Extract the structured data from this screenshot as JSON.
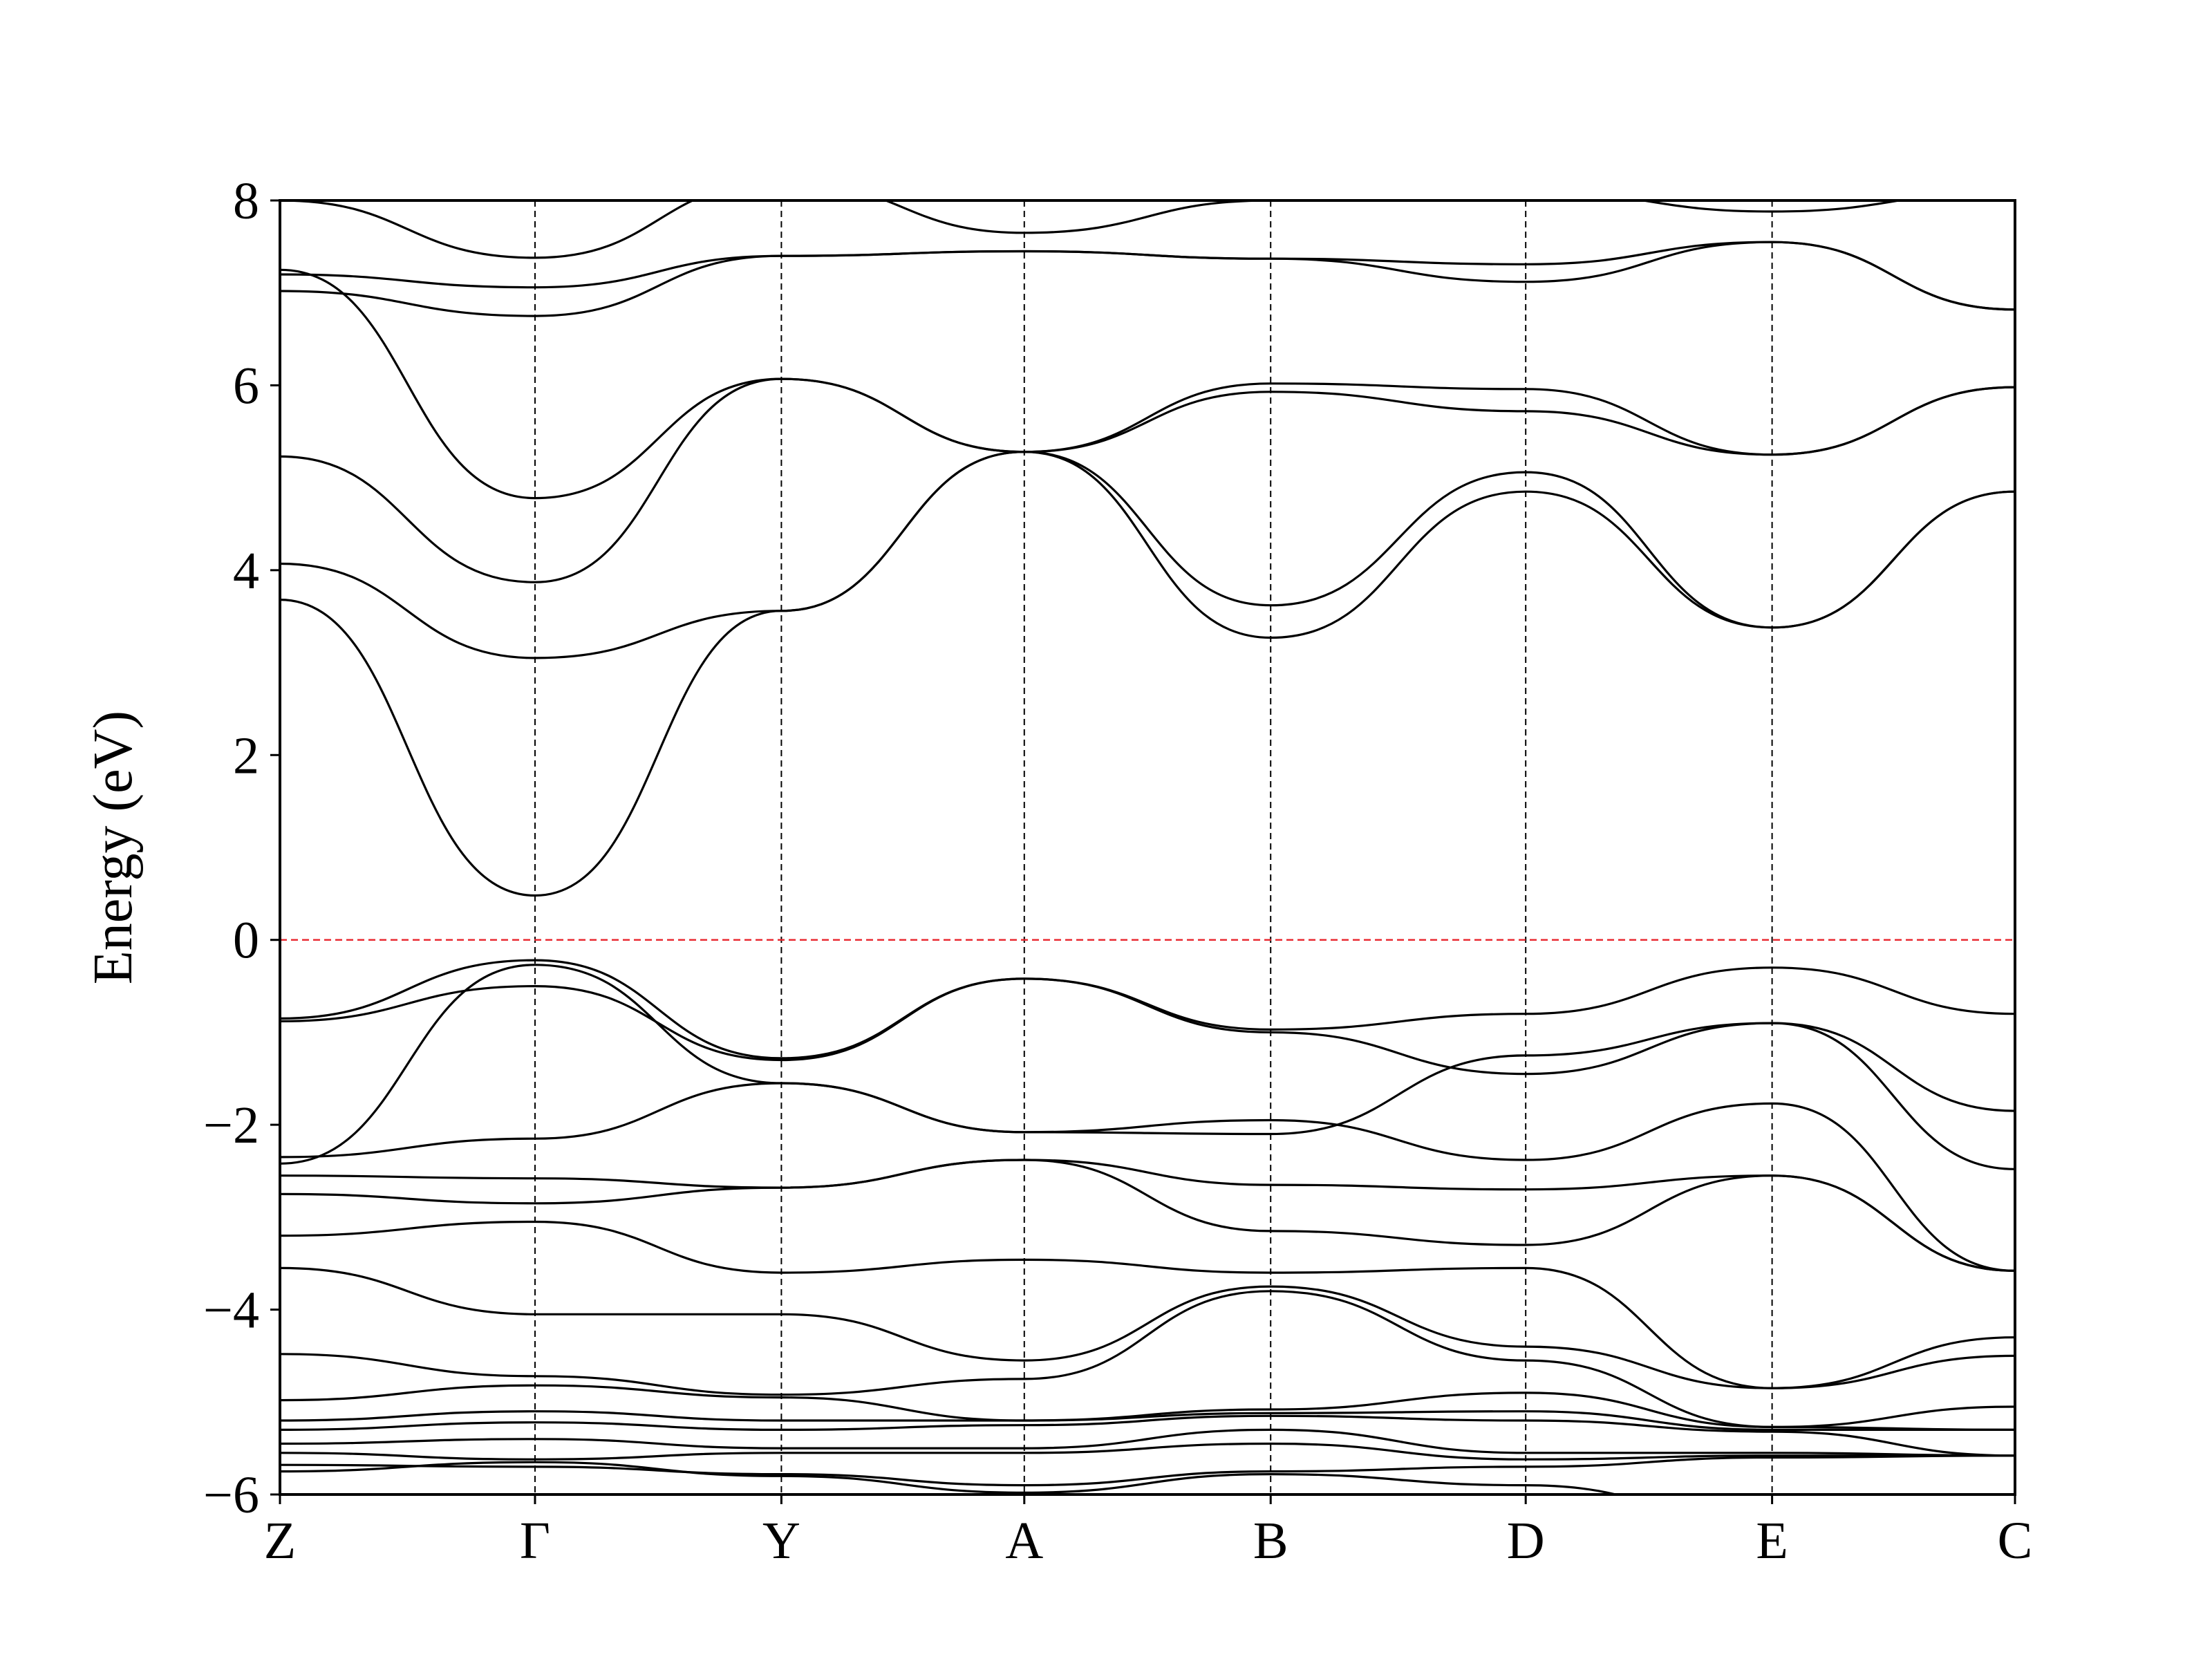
{
  "chart_data": {
    "type": "line",
    "title": "",
    "xlabel": "",
    "ylabel": "Energy (eV)",
    "ylim": [
      -6,
      8
    ],
    "yticks": [
      "−6",
      "−4",
      "−2",
      "0",
      "2",
      "4",
      "6",
      "8"
    ],
    "ytick_values": [
      -6,
      -4,
      -2,
      0,
      2,
      4,
      6,
      8
    ],
    "kpath": {
      "labels": [
        "Z",
        "Γ",
        "Y",
        "A",
        "B",
        "D",
        "E",
        "C"
      ],
      "positions": [
        0,
        0.147,
        0.289,
        0.429,
        0.571,
        0.718,
        0.86,
        1.0
      ]
    },
    "reference_line": {
      "y": 0,
      "label": "",
      "color": "#e8232a",
      "style": "dashed"
    },
    "grid": false,
    "line_color": "#000000",
    "series": [
      {
        "x": [
          0,
          0.147,
          0.289,
          0.429,
          0.571,
          0.718,
          0.86,
          1.0
        ],
        "y": [
          3.68,
          0.48,
          3.56,
          5.28,
          3.27,
          4.85,
          3.38,
          4.85
        ]
      },
      {
        "x": [
          0,
          0.147,
          0.289,
          0.429,
          0.571,
          0.718,
          0.86,
          1.0
        ],
        "y": [
          4.07,
          3.05,
          3.56,
          5.28,
          3.62,
          5.06,
          3.38,
          4.85
        ]
      },
      {
        "x": [
          0,
          0.147,
          0.289,
          0.429,
          0.571,
          0.718,
          0.86,
          1.0
        ],
        "y": [
          5.23,
          3.87,
          6.07,
          5.28,
          5.93,
          5.72,
          5.25,
          5.98
        ]
      },
      {
        "x": [
          0,
          0.147,
          0.289,
          0.429,
          0.571,
          0.718,
          0.86,
          1.0
        ],
        "y": [
          7.25,
          4.78,
          6.07,
          5.28,
          6.02,
          5.96,
          5.25,
          5.98
        ]
      },
      {
        "x": [
          0,
          0.147,
          0.289,
          0.429,
          0.571,
          0.718,
          0.86,
          1.0
        ],
        "y": [
          7.02,
          6.75,
          7.4,
          7.45,
          7.37,
          7.12,
          7.55,
          6.82
        ]
      },
      {
        "x": [
          0,
          0.147,
          0.289,
          0.429,
          0.571,
          0.718,
          0.86,
          1.0
        ],
        "y": [
          7.2,
          7.06,
          7.4,
          7.45,
          7.37,
          7.31,
          7.55,
          6.82
        ]
      },
      {
        "x": [
          0,
          0.147,
          0.289,
          0.429,
          0.571,
          0.718,
          0.86,
          1.0
        ],
        "y": [
          8.0,
          7.38,
          8.2,
          7.65,
          8.0,
          8.1,
          7.88,
          8.1
        ]
      },
      {
        "x": [
          0,
          0.147,
          0.289,
          0.429,
          0.571,
          0.718,
          0.86,
          1.0
        ],
        "y": [
          -0.85,
          -0.22,
          -1.28,
          -0.42,
          -0.97,
          -0.8,
          -0.3,
          -0.8
        ]
      },
      {
        "x": [
          0,
          0.147,
          0.289,
          0.429,
          0.571,
          0.718,
          0.86,
          1.0
        ],
        "y": [
          -0.88,
          -0.5,
          -1.3,
          -0.42,
          -1.0,
          -1.45,
          -0.9,
          -1.85
        ]
      },
      {
        "x": [
          0,
          0.147,
          0.289,
          0.429,
          0.571,
          0.718,
          0.86,
          1.0
        ],
        "y": [
          -2.42,
          -0.27,
          -1.55,
          -2.08,
          -2.1,
          -1.25,
          -0.9,
          -2.48
        ]
      },
      {
        "x": [
          0,
          0.147,
          0.289,
          0.429,
          0.571,
          0.718,
          0.86,
          1.0
        ],
        "y": [
          -2.35,
          -2.15,
          -1.55,
          -2.08,
          -1.95,
          -2.38,
          -1.77,
          -3.58
        ]
      },
      {
        "x": [
          0,
          0.147,
          0.289,
          0.429,
          0.571,
          0.718,
          0.86,
          1.0
        ],
        "y": [
          -2.55,
          -2.58,
          -2.68,
          -2.38,
          -2.65,
          -2.7,
          -2.55,
          -3.58
        ]
      },
      {
        "x": [
          0,
          0.147,
          0.289,
          0.429,
          0.571,
          0.718,
          0.86,
          1.0
        ],
        "y": [
          -2.75,
          -2.85,
          -2.68,
          -2.38,
          -3.15,
          -3.3,
          -2.55,
          -3.58
        ]
      },
      {
        "x": [
          0,
          0.147,
          0.289,
          0.429,
          0.571,
          0.718,
          0.86,
          1.0
        ],
        "y": [
          -3.2,
          -3.05,
          -3.6,
          -3.46,
          -3.6,
          -3.55,
          -4.85,
          -4.3
        ]
      },
      {
        "x": [
          0,
          0.147,
          0.289,
          0.429,
          0.571,
          0.718,
          0.86,
          1.0
        ],
        "y": [
          -3.55,
          -4.05,
          -4.05,
          -4.55,
          -3.75,
          -4.4,
          -4.85,
          -4.5
        ]
      },
      {
        "x": [
          0,
          0.147,
          0.289,
          0.429,
          0.571,
          0.718,
          0.86,
          1.0
        ],
        "y": [
          -4.48,
          -4.72,
          -4.92,
          -4.75,
          -3.8,
          -4.55,
          -5.27,
          -5.05
        ]
      },
      {
        "x": [
          0,
          0.147,
          0.289,
          0.429,
          0.571,
          0.718,
          0.86,
          1.0
        ],
        "y": [
          -4.98,
          -4.82,
          -4.95,
          -5.2,
          -5.08,
          -4.9,
          -5.27,
          -5.3
        ]
      },
      {
        "x": [
          0,
          0.147,
          0.289,
          0.429,
          0.571,
          0.718,
          0.86,
          1.0
        ],
        "y": [
          -5.2,
          -5.1,
          -5.2,
          -5.2,
          -5.12,
          -5.1,
          -5.3,
          -5.3
        ]
      },
      {
        "x": [
          0,
          0.147,
          0.289,
          0.429,
          0.571,
          0.718,
          0.86,
          1.0
        ],
        "y": [
          -5.3,
          -5.22,
          -5.3,
          -5.25,
          -5.15,
          -5.2,
          -5.32,
          -5.58
        ]
      },
      {
        "x": [
          0,
          0.147,
          0.289,
          0.429,
          0.571,
          0.718,
          0.86,
          1.0
        ],
        "y": [
          -5.45,
          -5.4,
          -5.5,
          -5.5,
          -5.3,
          -5.55,
          -5.55,
          -5.58
        ]
      },
      {
        "x": [
          0,
          0.147,
          0.289,
          0.429,
          0.571,
          0.718,
          0.86,
          1.0
        ],
        "y": [
          -5.55,
          -5.62,
          -5.55,
          -5.55,
          -5.45,
          -5.62,
          -5.58,
          -5.58
        ]
      },
      {
        "x": [
          0,
          0.147,
          0.289,
          0.429,
          0.571,
          0.718,
          0.86,
          1.0
        ],
        "y": [
          -5.68,
          -5.7,
          -5.78,
          -5.9,
          -5.75,
          -5.7,
          -5.6,
          -5.58
        ]
      },
      {
        "x": [
          0,
          0.147,
          0.289,
          0.429,
          0.571,
          0.718,
          0.86,
          1.0
        ],
        "y": [
          -5.75,
          -5.65,
          -5.8,
          -5.98,
          -5.78,
          -5.9,
          -6.3,
          -6.3
        ]
      }
    ]
  }
}
